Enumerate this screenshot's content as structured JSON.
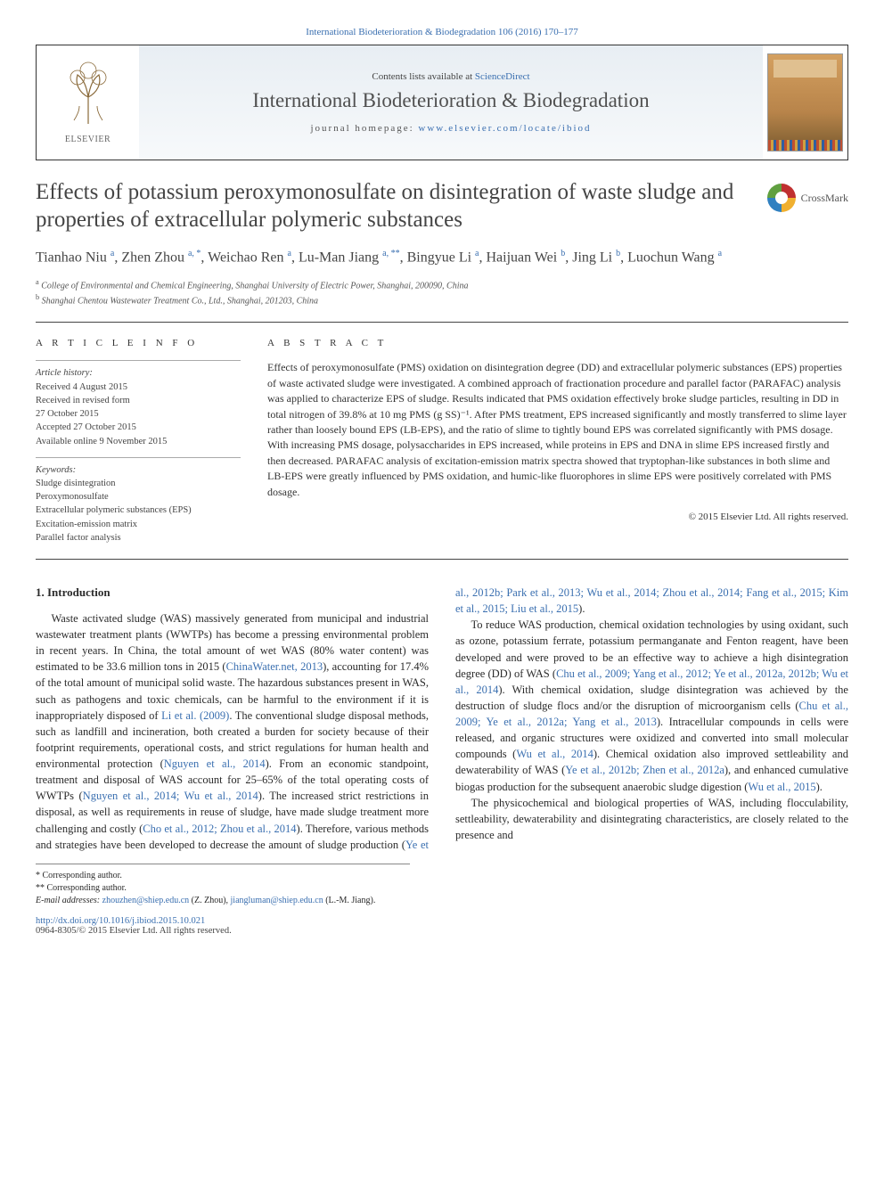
{
  "topLink": "International Biodeterioration & Biodegradation 106 (2016) 170–177",
  "header": {
    "contentsPrefix": "Contents lists available at ",
    "contentsLink": "ScienceDirect",
    "journal": "International Biodeterioration & Biodegradation",
    "homepagePrefix": "journal homepage: ",
    "homepageLink": "www.elsevier.com/locate/ibiod",
    "elsevier": "ELSEVIER"
  },
  "crossmark": "CrossMark",
  "title": "Effects of potassium peroxymonosulfate on disintegration of waste sludge and properties of extracellular polymeric substances",
  "authors": "Tianhao Niu <sup>a</sup>, Zhen Zhou <sup>a, *</sup>, Weichao Ren <sup>a</sup>, Lu-Man Jiang <sup>a, **</sup>, Bingyue Li <sup>a</sup>, Haijuan Wei <sup>b</sup>, Jing Li <sup>b</sup>, Luochun Wang <sup>a</sup>",
  "affiliations": [
    "a College of Environmental and Chemical Engineering, Shanghai University of Electric Power, Shanghai, 200090, China",
    "b Shanghai Chentou Wastewater Treatment Co., Ltd., Shanghai, 201203, China"
  ],
  "articleInfo": {
    "heading": "A R T I C L E   I N F O",
    "historyLabel": "Article history:",
    "history": [
      "Received 4 August 2015",
      "Received in revised form",
      "27 October 2015",
      "Accepted 27 October 2015",
      "Available online 9 November 2015"
    ],
    "keywordsLabel": "Keywords:",
    "keywords": [
      "Sludge disintegration",
      "Peroxymonosulfate",
      "Extracellular polymeric substances (EPS)",
      "Excitation-emission matrix",
      "Parallel factor analysis"
    ]
  },
  "abstract": {
    "heading": "A B S T R A C T",
    "text": "Effects of peroxymonosulfate (PMS) oxidation on disintegration degree (DD) and extracellular polymeric substances (EPS) properties of waste activated sludge were investigated. A combined approach of fractionation procedure and parallel factor (PARAFAC) analysis was applied to characterize EPS of sludge. Results indicated that PMS oxidation effectively broke sludge particles, resulting in DD in total nitrogen of 39.8% at 10 mg PMS (g SS)⁻¹. After PMS treatment, EPS increased significantly and mostly transferred to slime layer rather than loosely bound EPS (LB-EPS), and the ratio of slime to tightly bound EPS was correlated significantly with PMS dosage. With increasing PMS dosage, polysaccharides in EPS increased, while proteins in EPS and DNA in slime EPS increased firstly and then decreased. PARAFAC analysis of excitation-emission matrix spectra showed that tryptophan-like substances in both slime and LB-EPS were greatly influenced by PMS oxidation, and humic-like fluorophores in slime EPS were positively correlated with PMS dosage.",
    "copyright": "© 2015 Elsevier Ltd. All rights reserved."
  },
  "intro": {
    "heading": "1. Introduction",
    "p1a": "Waste activated sludge (WAS) massively generated from municipal and industrial wastewater treatment plants (WWTPs) has become a pressing environmental problem in recent years. In China, the total amount of wet WAS (80% water content) was estimated to be 33.6 million tons in 2015 (",
    "p1r1": "ChinaWater.net, 2013",
    "p1b": "), accounting for 17.4% of the total amount of municipal solid waste. The hazardous substances present in WAS, such as pathogens and toxic chemicals, can be harmful to the environment if it is inappropriately disposed of ",
    "p1r2": "Li et al. (2009)",
    "p1c": ". The conventional sludge disposal methods, such as landfill and incineration, both created a burden for society because of their footprint requirements, operational costs, and strict regulations for human health and environmental protection (",
    "p1r3": "Nguyen et al., 2014",
    "p1d": "). From an economic standpoint, treatment and disposal of WAS account for 25–65% of the total operating costs of WWTPs (",
    "p1r4": "Nguyen et al., 2014; Wu et al., 2014",
    "p1e": "). The increased strict restrictions in disposal, as well as",
    "p2a": "requirements in reuse of sludge, have made sludge treatment more challenging and costly (",
    "p2r1": "Cho et al., 2012; Zhou et al., 2014",
    "p2b": "). Therefore, various methods and strategies have been developed to decrease the amount of sludge production (",
    "p2r2": "Ye et al., 2012b; Park et al., 2013; Wu et al., 2014; Zhou et al., 2014; Fang et al., 2015; Kim et al., 2015; Liu et al., 2015",
    "p2c": ").",
    "p3a": "To reduce WAS production, chemical oxidation technologies by using oxidant, such as ozone, potassium ferrate, potassium permanganate and Fenton reagent, have been developed and were proved to be an effective way to achieve a high disintegration degree (DD) of WAS (",
    "p3r1": "Chu et al., 2009; Yang et al., 2012; Ye et al., 2012a, 2012b; Wu et al., 2014",
    "p3b": "). With chemical oxidation, sludge disintegration was achieved by the destruction of sludge flocs and/or the disruption of microorganism cells (",
    "p3r2": "Chu et al., 2009; Ye et al., 2012a; Yang et al., 2013",
    "p3c": "). Intracellular compounds in cells were released, and organic structures were oxidized and converted into small molecular compounds (",
    "p3r3": "Wu et al., 2014",
    "p3d": "). Chemical oxidation also improved settleability and dewaterability of WAS (",
    "p3r4": "Ye et al., 2012b; Zhen et al., 2012a",
    "p3e": "), and enhanced cumulative biogas production for the subsequent anaerobic sludge digestion (",
    "p3r5": "Wu et al., 2015",
    "p3f": ").",
    "p4": "The physicochemical and biological properties of WAS, including flocculability, settleability, dewaterability and disintegrating characteristics, are closely related to the presence and"
  },
  "footnotes": {
    "l1": "* Corresponding author.",
    "l2": "** Corresponding author.",
    "l3a": "E-mail addresses: ",
    "l3e1": "zhouzhen@shiep.edu.cn",
    "l3b": " (Z. Zhou), ",
    "l3e2": "jiangluman@shiep.edu.cn",
    "l3c": " (L.-M. Jiang)."
  },
  "doi": {
    "link": "http://dx.doi.org/10.1016/j.ibiod.2015.10.021",
    "issn": "0964-8305/© 2015 Elsevier Ltd. All rights reserved."
  },
  "colors": {
    "link": "#3a6fb0",
    "text": "#2a2a2a",
    "rule": "#444444",
    "headerGradTop": "#e8eef3",
    "headerGradBot": "#f7f9fb"
  }
}
